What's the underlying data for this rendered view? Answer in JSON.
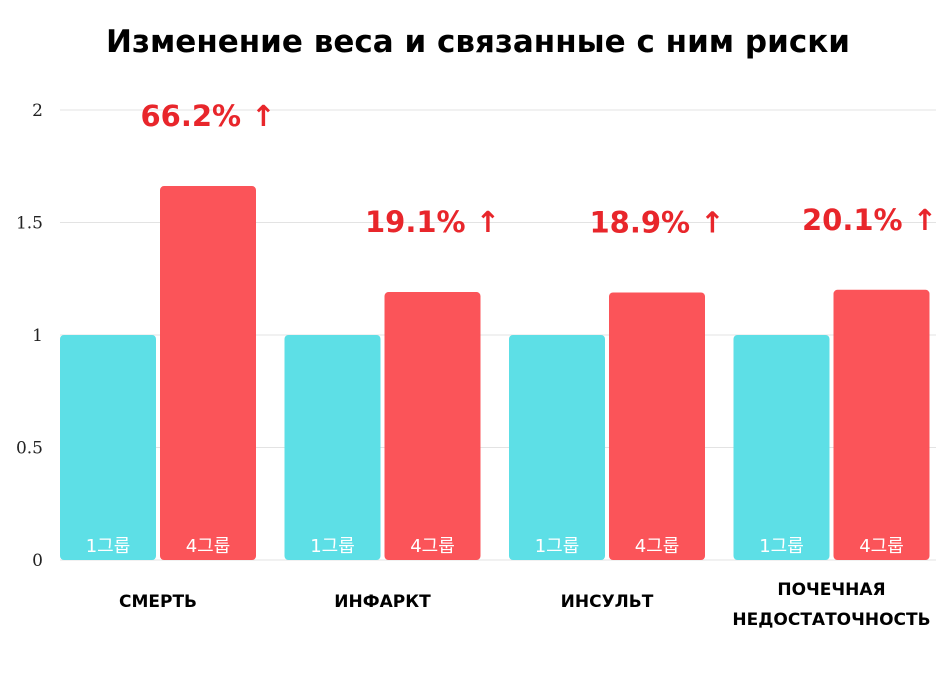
{
  "chart_data": {
    "type": "bar",
    "title": "Изменение веса и связанные с ним риски",
    "categories": [
      "СМЕРТЬ",
      "ИНФАРКТ",
      "ИНСУЛЬТ",
      "ПОЧЕЧНАЯ НЕДОСТАТОЧНОСТЬ"
    ],
    "series": [
      {
        "name": "1그룹",
        "color": "#5ddfe6",
        "values": [
          1,
          1,
          1,
          1
        ]
      },
      {
        "name": "4그룹",
        "color": "#fb5459",
        "values": [
          1.662,
          1.191,
          1.189,
          1.201
        ]
      }
    ],
    "annotations": [
      "66.2% ↑",
      "19.1% ↑",
      "18.9% ↑",
      "20.1% ↑"
    ],
    "yticks": [
      0,
      0.5,
      1,
      1.5,
      2
    ],
    "ytick_labels": [
      "0",
      "0.5",
      "1",
      "1.5",
      "2"
    ],
    "ylim": [
      0,
      2
    ],
    "grid": true,
    "legend": "none"
  }
}
